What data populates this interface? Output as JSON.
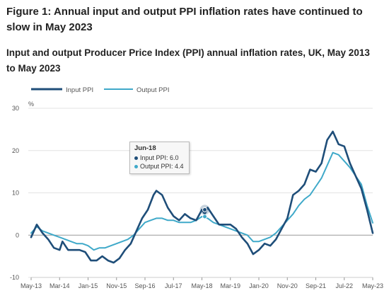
{
  "figure_title": "Figure 1: Annual input and output PPI inflation rates have continued to slow in May 2023",
  "figure_subtitle": "Input and output Producer Price Index (PPI) annual inflation rates, UK, May 2013 to May 2023",
  "colors": {
    "input": "#1f4e79",
    "output": "#3fa9c9",
    "grid": "#e3e3e3",
    "zero": "#999999"
  },
  "tooltip": {
    "title": "Jun-18",
    "rows": [
      {
        "label": "Input PPI: 6.0",
        "color": "#1f4e79"
      },
      {
        "label": "Output PPI: 4.4",
        "color": "#3fa9c9"
      }
    ]
  },
  "chart_data": {
    "type": "line",
    "title": "",
    "xlabel": "",
    "ylabel": "%",
    "ylim": [
      -10,
      30
    ],
    "yticks": [
      -10,
      0,
      10,
      20,
      30
    ],
    "grid": true,
    "legend": "top-left",
    "x_tick_labels": [
      "May-13",
      "Mar-14",
      "Jan-15",
      "Nov-15",
      "Sep-16",
      "Jul-17",
      "May-18",
      "Mar-19",
      "Jan-20",
      "Nov-20",
      "Sep-21",
      "Jul-22",
      "May-23"
    ],
    "x_start": "May-13",
    "x_end": "May-23",
    "series": [
      {
        "name": "Input PPI",
        "points": [
          [
            0,
            -0.5
          ],
          [
            2,
            2.5
          ],
          [
            4,
            0.5
          ],
          [
            6,
            -1.0
          ],
          [
            8,
            -3.0
          ],
          [
            10,
            -3.5
          ],
          [
            11,
            -1.5
          ],
          [
            13,
            -3.5
          ],
          [
            15,
            -3.5
          ],
          [
            17,
            -3.5
          ],
          [
            19,
            -4.0
          ],
          [
            21,
            -6.0
          ],
          [
            23,
            -6.0
          ],
          [
            25,
            -5.0
          ],
          [
            27,
            -6.0
          ],
          [
            29,
            -6.5
          ],
          [
            31,
            -5.5
          ],
          [
            33,
            -3.5
          ],
          [
            35,
            -2.0
          ],
          [
            37,
            1.0
          ],
          [
            39,
            4.0
          ],
          [
            41,
            6.0
          ],
          [
            43,
            9.5
          ],
          [
            44,
            10.5
          ],
          [
            46,
            9.5
          ],
          [
            48,
            6.5
          ],
          [
            50,
            4.5
          ],
          [
            52,
            3.5
          ],
          [
            54,
            5.0
          ],
          [
            56,
            4.0
          ],
          [
            58,
            3.5
          ],
          [
            60,
            6.0
          ],
          [
            61,
            5.0
          ],
          [
            62,
            6.5
          ],
          [
            64,
            4.5
          ],
          [
            66,
            2.5
          ],
          [
            68,
            2.5
          ],
          [
            70,
            2.5
          ],
          [
            72,
            1.5
          ],
          [
            74,
            -0.5
          ],
          [
            76,
            -2.0
          ],
          [
            78,
            -4.5
          ],
          [
            80,
            -3.5
          ],
          [
            82,
            -2.0
          ],
          [
            84,
            -2.5
          ],
          [
            86,
            -1.0
          ],
          [
            88,
            1.5
          ],
          [
            90,
            4.0
          ],
          [
            92,
            9.5
          ],
          [
            94,
            10.5
          ],
          [
            96,
            12.0
          ],
          [
            98,
            15.5
          ],
          [
            100,
            15.0
          ],
          [
            102,
            17.0
          ],
          [
            104,
            22.5
          ],
          [
            106,
            24.5
          ],
          [
            108,
            21.5
          ],
          [
            110,
            21.0
          ],
          [
            112,
            17.0
          ],
          [
            114,
            14.0
          ],
          [
            116,
            11.0
          ],
          [
            118,
            6.0
          ],
          [
            120,
            0.5
          ]
        ]
      },
      {
        "name": "Output PPI",
        "points": [
          [
            0,
            0.5
          ],
          [
            2,
            2.0
          ],
          [
            4,
            1.0
          ],
          [
            6,
            0.5
          ],
          [
            8,
            0.0
          ],
          [
            10,
            -0.5
          ],
          [
            12,
            -1.0
          ],
          [
            14,
            -1.5
          ],
          [
            16,
            -2.0
          ],
          [
            18,
            -2.0
          ],
          [
            20,
            -2.5
          ],
          [
            22,
            -3.5
          ],
          [
            24,
            -3.0
          ],
          [
            26,
            -3.0
          ],
          [
            28,
            -2.5
          ],
          [
            30,
            -2.0
          ],
          [
            32,
            -1.5
          ],
          [
            34,
            -1.0
          ],
          [
            36,
            0.0
          ],
          [
            38,
            1.5
          ],
          [
            40,
            3.0
          ],
          [
            42,
            3.5
          ],
          [
            44,
            4.0
          ],
          [
            46,
            4.0
          ],
          [
            48,
            3.5
          ],
          [
            50,
            3.5
          ],
          [
            52,
            3.0
          ],
          [
            54,
            3.0
          ],
          [
            56,
            3.0
          ],
          [
            58,
            3.5
          ],
          [
            60,
            4.4
          ],
          [
            62,
            4.0
          ],
          [
            64,
            3.0
          ],
          [
            66,
            2.5
          ],
          [
            68,
            2.0
          ],
          [
            70,
            1.5
          ],
          [
            72,
            1.0
          ],
          [
            74,
            0.5
          ],
          [
            76,
            0.0
          ],
          [
            78,
            -1.5
          ],
          [
            80,
            -1.5
          ],
          [
            82,
            -1.0
          ],
          [
            84,
            -0.5
          ],
          [
            86,
            0.5
          ],
          [
            88,
            2.0
          ],
          [
            90,
            3.5
          ],
          [
            92,
            5.0
          ],
          [
            94,
            7.0
          ],
          [
            96,
            8.5
          ],
          [
            98,
            9.5
          ],
          [
            100,
            11.5
          ],
          [
            102,
            13.5
          ],
          [
            104,
            16.5
          ],
          [
            106,
            19.5
          ],
          [
            108,
            19.0
          ],
          [
            110,
            17.5
          ],
          [
            112,
            16.0
          ],
          [
            114,
            14.0
          ],
          [
            116,
            12.0
          ],
          [
            118,
            7.0
          ],
          [
            120,
            2.9
          ]
        ]
      }
    ]
  }
}
